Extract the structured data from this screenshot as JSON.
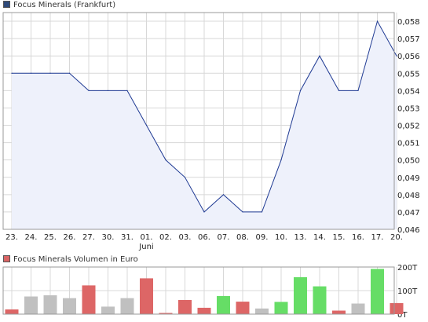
{
  "colors": {
    "price_line": "#1f3a93",
    "price_fill": "#eef1fb",
    "grid": "#d8d8d8",
    "frame": "#999999",
    "price_swatch": "#2e4a7a",
    "volume_swatch": "#d96464",
    "vol_red": "#dd6666",
    "vol_green": "#66dd66",
    "vol_grey": "#c0c0c0"
  },
  "chart_data": [
    {
      "type": "area",
      "title": "Focus Minerals (Frankfurt)",
      "x_tick_labels": [
        "23.",
        "24.",
        "25.",
        "26.",
        "27.",
        "30.",
        "31.",
        "01.",
        "02.",
        "03.",
        "06.",
        "07.",
        "08.",
        "09.",
        "10.",
        "13.",
        "14.",
        "15.",
        "16.",
        "17.",
        "20."
      ],
      "x_sub_label": "Juni",
      "y_tick_labels": [
        "0,046",
        "0,047",
        "0,048",
        "0,049",
        "0,050",
        "0,051",
        "0,052",
        "0,053",
        "0,054",
        "0,055",
        "0,056",
        "0,057",
        "0,058"
      ],
      "ylim": [
        0.046,
        0.0585
      ],
      "grid": true,
      "legend_position": "top-left",
      "series": [
        {
          "name": "Focus Minerals (Frankfurt)",
          "values": [
            0.055,
            0.055,
            0.055,
            0.055,
            0.054,
            0.054,
            0.054,
            0.052,
            0.05,
            0.049,
            0.047,
            0.048,
            0.047,
            0.047,
            0.05,
            0.054,
            0.056,
            0.054,
            0.054,
            0.058,
            0.056
          ]
        }
      ]
    },
    {
      "type": "bar",
      "title": "Focus Minerals Volumen in Euro",
      "y_tick_labels": [
        "200T",
        "100T",
        "0T"
      ],
      "ylim": [
        0,
        200000
      ],
      "legend_position": "top-left",
      "series": [
        {
          "name": "Focus Minerals Volumen in Euro",
          "values": [
            20000,
            75000,
            80000,
            68000,
            122000,
            32000,
            68000,
            152000,
            5000,
            60000,
            27000,
            77000,
            53000,
            24000,
            52000,
            157000,
            118000,
            15000,
            45000,
            192000,
            47000
          ],
          "colors": [
            "red",
            "grey",
            "grey",
            "grey",
            "red",
            "grey",
            "grey",
            "red",
            "red",
            "red",
            "red",
            "green",
            "red",
            "grey",
            "green",
            "green",
            "green",
            "red",
            "grey",
            "green",
            "red"
          ]
        }
      ]
    }
  ]
}
